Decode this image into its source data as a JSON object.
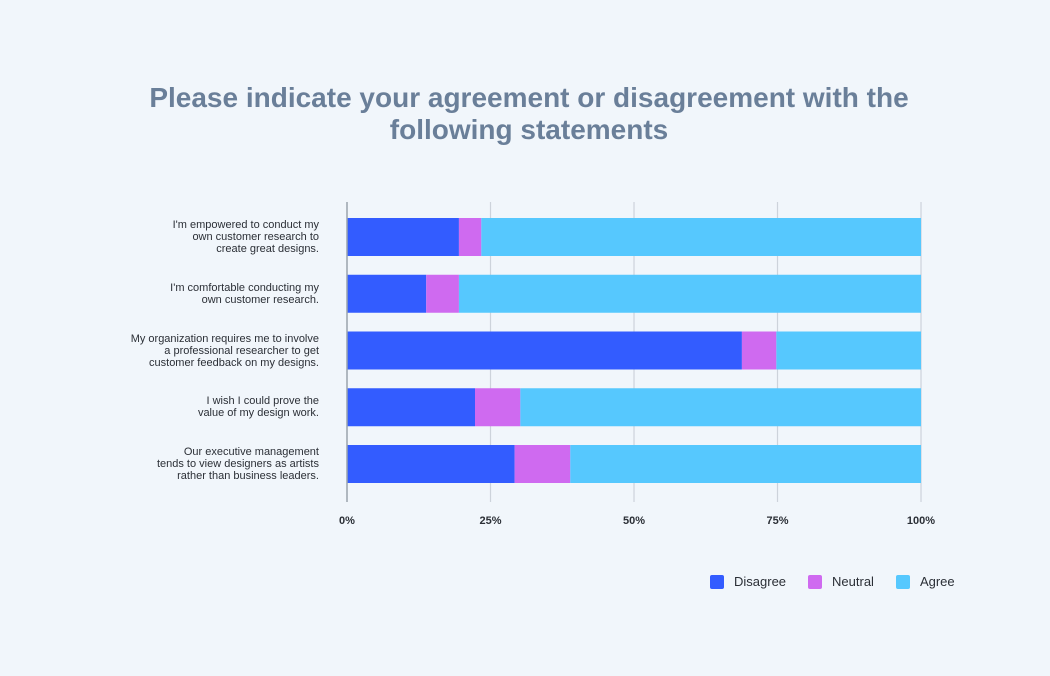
{
  "title_lines": [
    "Please indicate your agreement or disagreement with the",
    "following statements"
  ],
  "colors": {
    "Disagree": "#335cff",
    "Neutral": "#cf6af0",
    "Agree": "#56c8fe",
    "grid": "#cdd3db",
    "axis": "#9aa3ad",
    "tick_text": "#2b2f36"
  },
  "chart_data": {
    "type": "bar",
    "orientation": "horizontal",
    "stacked": true,
    "categories": [
      [
        "I'm empowered to conduct my",
        "own customer research to",
        "create great designs."
      ],
      [
        "I'm comfortable conducting my",
        "own customer research."
      ],
      [
        "My organization requires me to involve",
        "a professional researcher to get",
        "customer feedback on my designs."
      ],
      [
        "I wish I could prove the",
        "value of my design work."
      ],
      [
        "Our executive management",
        "tends to view designers as artists",
        "rather than business leaders."
      ]
    ],
    "series": [
      {
        "name": "Disagree",
        "values": [
          19.5,
          13.8,
          68.8,
          22.3,
          29.2
        ]
      },
      {
        "name": "Neutral",
        "values": [
          3.9,
          5.7,
          6.0,
          7.9,
          9.7
        ]
      },
      {
        "name": "Agree",
        "values": [
          76.6,
          80.5,
          25.2,
          69.8,
          61.1
        ]
      }
    ],
    "xlim": [
      0,
      100
    ],
    "xticks": [
      "0%",
      "25%",
      "50%",
      "75%",
      "100%"
    ],
    "grid": true,
    "legend_position": "bottom-right"
  }
}
